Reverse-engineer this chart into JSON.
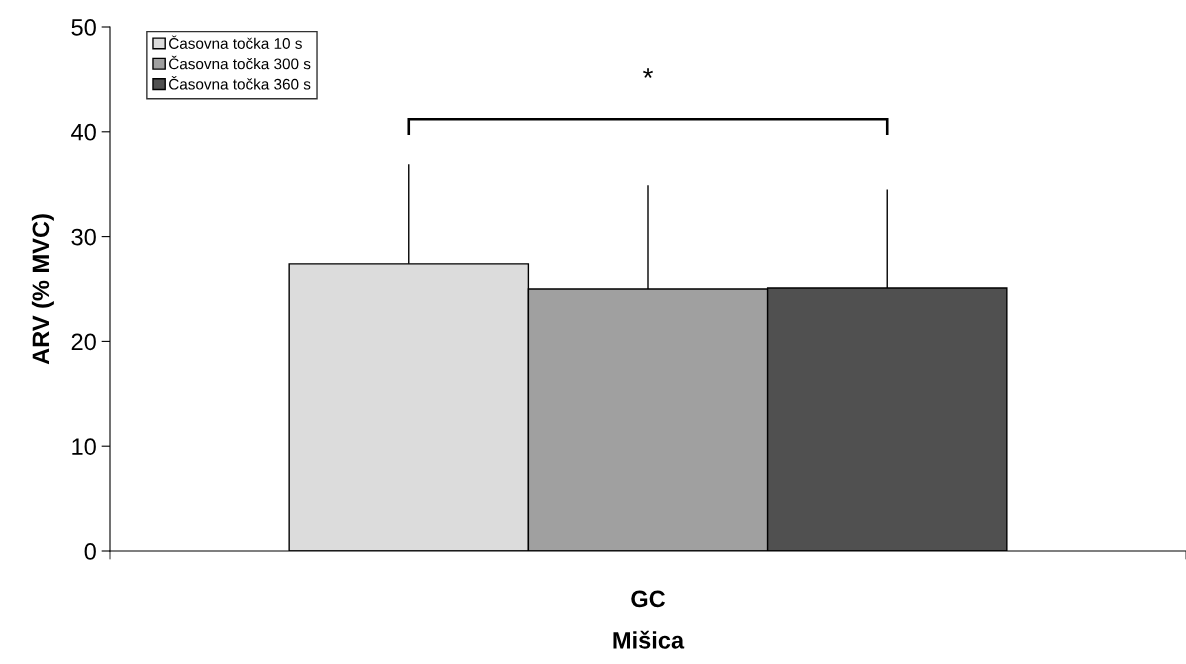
{
  "chart_data": {
    "type": "bar",
    "xlabel": "Mišica",
    "ylabel": "ARV (% MVC)",
    "categories": [
      "GC"
    ],
    "series": [
      {
        "name": "Časovna točka 10 s",
        "color": "#dcdcdc",
        "values": [
          27.4
        ],
        "errors": [
          [
            27.4,
            36.9
          ]
        ]
      },
      {
        "name": "Časovna točka 300 s",
        "color": "#a0a0a0",
        "values": [
          25.0
        ],
        "errors": [
          [
            25.0,
            34.9
          ]
        ]
      },
      {
        "name": "Časovna točka 360 s",
        "color": "#505050",
        "values": [
          25.1
        ],
        "errors": [
          [
            25.1,
            34.5
          ]
        ]
      }
    ],
    "ylim": [
      0,
      50
    ],
    "yticks": [
      0,
      10,
      20,
      30,
      40,
      50
    ],
    "grid": false,
    "legend": "top left",
    "annotations": [
      "*"
    ]
  }
}
